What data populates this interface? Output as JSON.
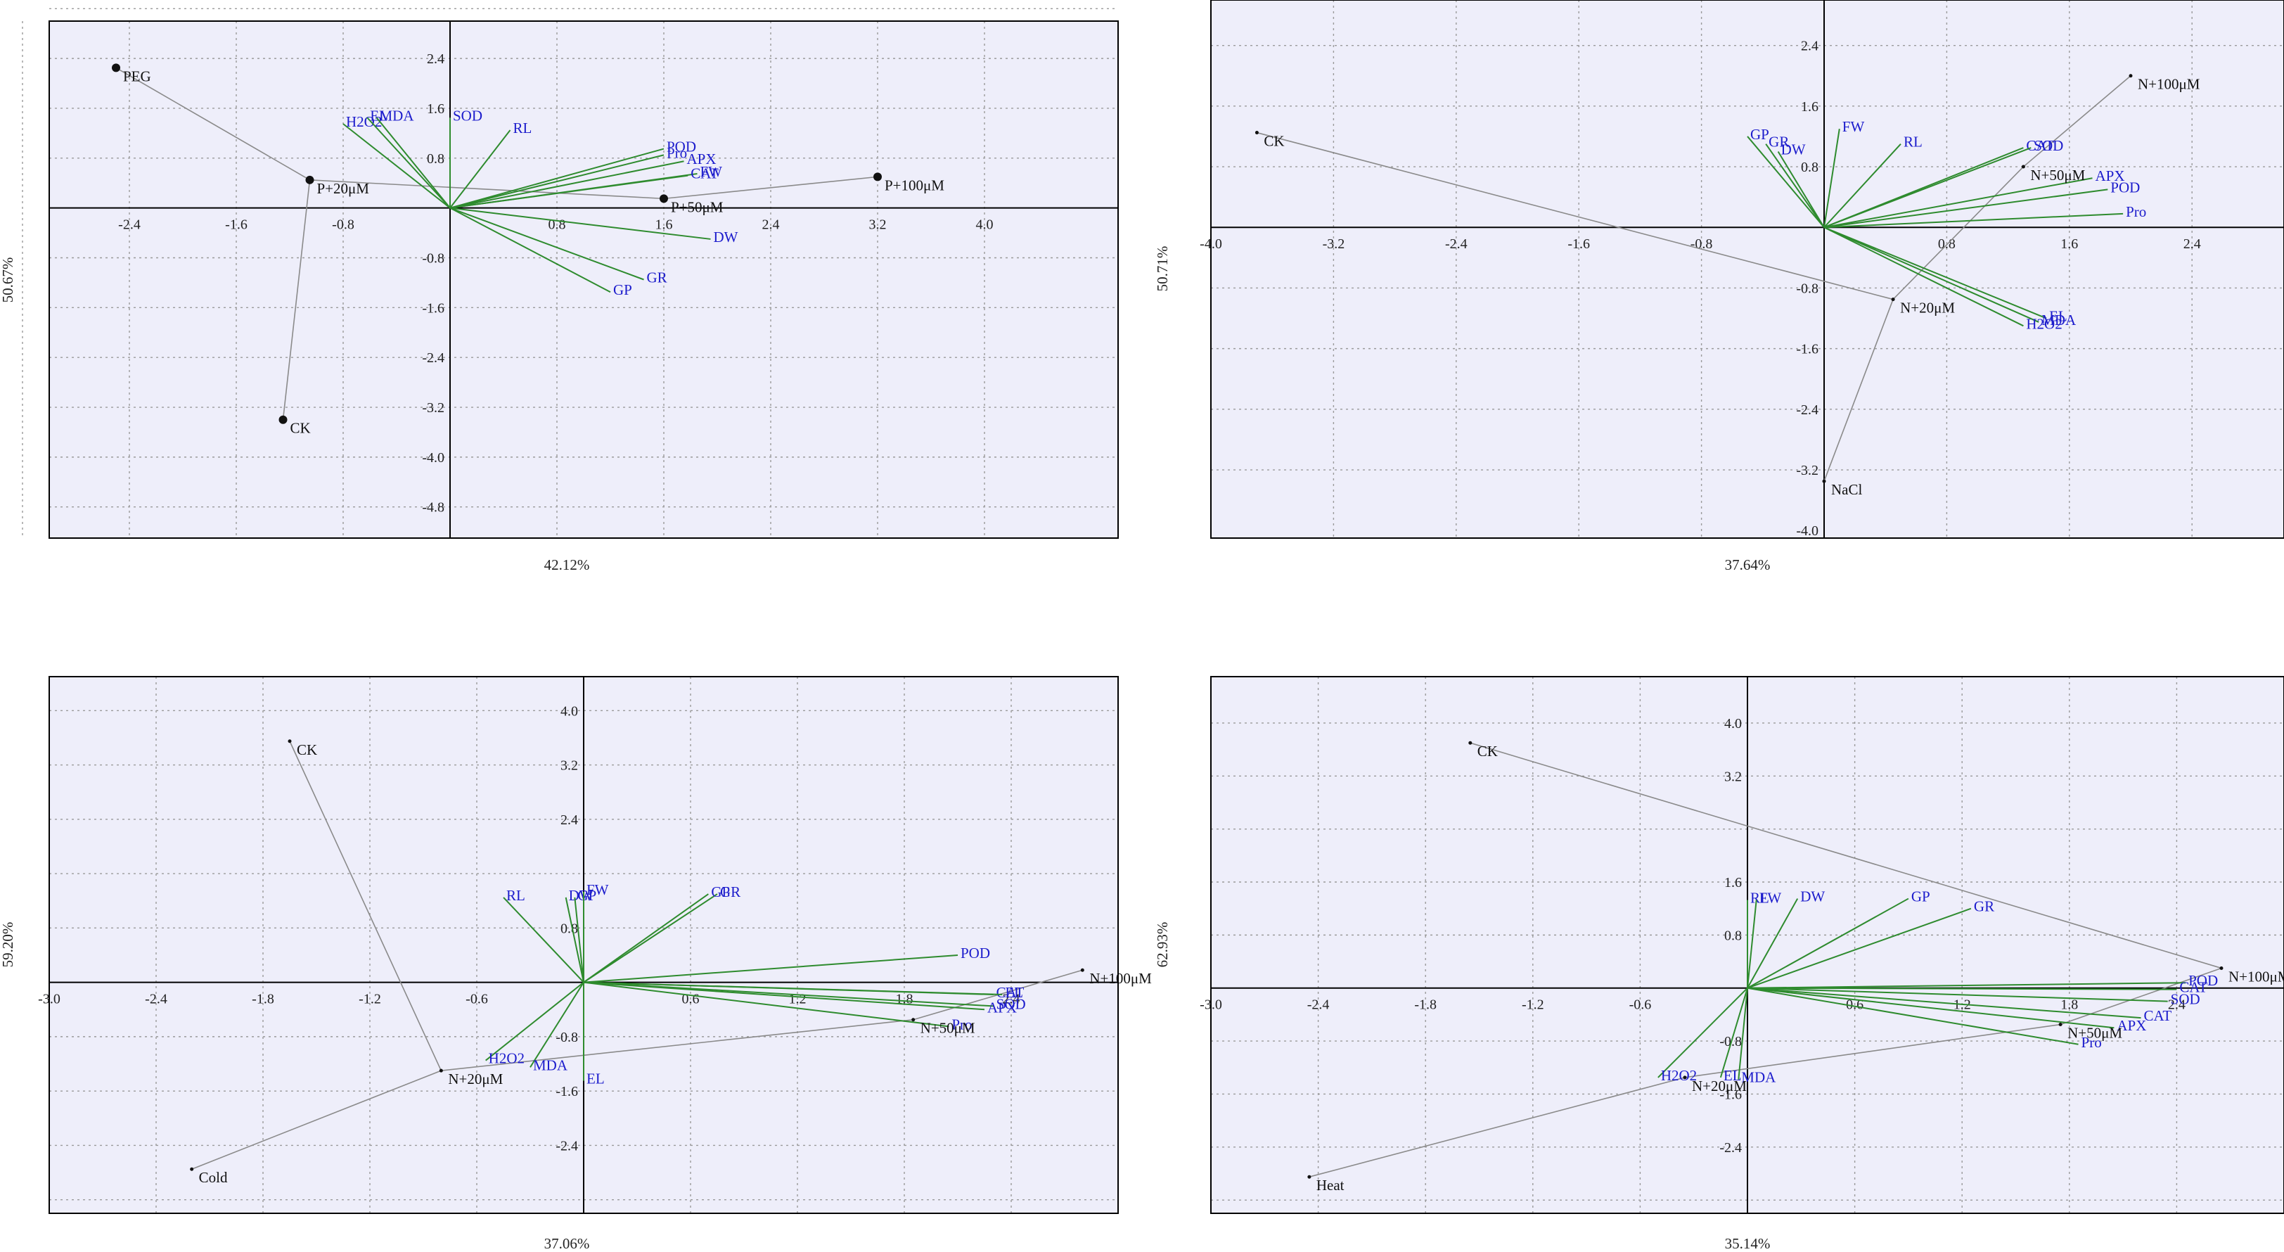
{
  "colors": {
    "plot_bg": "#eeeefa",
    "frame": "#000000",
    "grid": "#9a9a9a",
    "vector": "#2e8b2e",
    "vector_label": "#1c1ccc",
    "sample_line": "#8a8a8a",
    "sample_label": "#111111"
  },
  "chart_data": [
    {
      "type": "scatter",
      "panel": "PEG",
      "xlabel": "42.12%",
      "ylabel": "50.67%",
      "xlim": [
        -3.0,
        5.0
      ],
      "ylim": [
        -5.3,
        3.0
      ],
      "xticks": [
        -2.4,
        -1.6,
        -0.8,
        0.8,
        1.6,
        2.4,
        3.2,
        4.0
      ],
      "xtick_labels": [
        "-2.4",
        "-1.6",
        "-0.8",
        "0.8",
        "1.6",
        "2.4",
        "3.2",
        "4.0"
      ],
      "yticks": [
        2.4,
        1.6,
        0.8,
        -0.8,
        -1.6,
        -2.4,
        -3.2,
        -4.0,
        -4.8
      ],
      "ytick_labels": [
        "2.4",
        "1.6",
        "0.8",
        "-0.8",
        "-1.6",
        "-2.4",
        "-3.2",
        "-4.0",
        "-4.8"
      ],
      "vgrid": [
        -3.2,
        -2.4,
        -1.6,
        -0.8,
        0.8,
        1.6,
        2.4,
        3.2,
        4.0
      ],
      "hgrid": [
        3.2,
        2.4,
        1.6,
        0.8,
        -0.8,
        -1.6,
        -2.4,
        -3.2,
        -4.0,
        -4.8
      ],
      "samples": [
        {
          "label": "PEG",
          "x": -2.5,
          "y": 2.25,
          "dot": true
        },
        {
          "label": "P+20μM",
          "x": -1.05,
          "y": 0.45,
          "dot": true
        },
        {
          "label": "CK",
          "x": -1.25,
          "y": -3.4,
          "dot": true
        },
        {
          "label": "P+50μM",
          "x": 1.6,
          "y": 0.15,
          "dot": true
        },
        {
          "label": "P+100μM",
          "x": 3.2,
          "y": 0.5,
          "dot": true
        }
      ],
      "sample_path": [
        "PEG",
        "P+20μM",
        "CK",
        "P+20μM",
        "P+50μM",
        "P+100μM"
      ],
      "vectors": [
        {
          "label": "H2O2",
          "x": -0.8,
          "y": 1.35
        },
        {
          "label": "EL",
          "x": -0.62,
          "y": 1.45
        },
        {
          "label": "MDA",
          "x": -0.55,
          "y": 1.45
        },
        {
          "label": "SOD",
          "x": 0.0,
          "y": 1.45
        },
        {
          "label": "RL",
          "x": 0.45,
          "y": 1.25
        },
        {
          "label": "POD",
          "x": 1.6,
          "y": 0.95
        },
        {
          "label": "Pro",
          "x": 1.6,
          "y": 0.85
        },
        {
          "label": "APX",
          "x": 1.75,
          "y": 0.75
        },
        {
          "label": "FW",
          "x": 1.85,
          "y": 0.55
        },
        {
          "label": "CAT",
          "x": 1.78,
          "y": 0.52
        },
        {
          "label": "DW",
          "x": 1.95,
          "y": -0.5
        },
        {
          "label": "GR",
          "x": 1.45,
          "y": -1.15
        },
        {
          "label": "GP",
          "x": 1.2,
          "y": -1.35
        }
      ]
    },
    {
      "type": "scatter",
      "panel": "NaCl",
      "xlabel": "37.64%",
      "ylabel": "50.71%",
      "xlim": [
        -4.0,
        3.0
      ],
      "ylim": [
        -4.1,
        3.0
      ],
      "xticks": [
        -4.0,
        -3.2,
        -2.4,
        -1.6,
        -0.8,
        0.8,
        1.6,
        2.4
      ],
      "xtick_labels": [
        "-4.0",
        "-3.2",
        "-2.4",
        "-1.6",
        "-0.8",
        "0.8",
        "1.6",
        "2.4"
      ],
      "yticks": [
        2.4,
        1.6,
        0.8,
        -0.8,
        -1.6,
        -2.4,
        -3.2,
        -4.0
      ],
      "ytick_labels": [
        "2.4",
        "1.6",
        "0.8",
        "-0.8",
        "-1.6",
        "-2.4",
        "-3.2",
        "-4.0"
      ],
      "vgrid": [
        -3.2,
        -2.4,
        -1.6,
        -0.8,
        0.8,
        1.6,
        2.4
      ],
      "hgrid": [
        2.4,
        1.6,
        0.8,
        -0.8,
        -1.6,
        -2.4,
        -3.2
      ],
      "samples": [
        {
          "label": "CK",
          "x": -3.7,
          "y": 1.25,
          "dot": false
        },
        {
          "label": "N+20μM",
          "x": 0.45,
          "y": -0.95,
          "dot": false
        },
        {
          "label": "NaCl",
          "x": 0.0,
          "y": -3.35,
          "dot": false
        },
        {
          "label": "N+50μM",
          "x": 1.3,
          "y": 0.8,
          "dot": false
        },
        {
          "label": "N+100μM",
          "x": 2.0,
          "y": 2.0,
          "dot": false
        }
      ],
      "sample_path": [
        "CK",
        "N+20μM",
        "NaCl",
        "N+20μM",
        "N+50μM",
        "N+100μM"
      ],
      "vectors": [
        {
          "label": "GP",
          "x": -0.5,
          "y": 1.2
        },
        {
          "label": "GR",
          "x": -0.38,
          "y": 1.1
        },
        {
          "label": "DW",
          "x": -0.3,
          "y": 1.0
        },
        {
          "label": "FW",
          "x": 0.1,
          "y": 1.3
        },
        {
          "label": "RL",
          "x": 0.5,
          "y": 1.1
        },
        {
          "label": "CAT",
          "x": 1.3,
          "y": 1.05
        },
        {
          "label": "SOD",
          "x": 1.35,
          "y": 1.05
        },
        {
          "label": "APX",
          "x": 1.75,
          "y": 0.65
        },
        {
          "label": "POD",
          "x": 1.85,
          "y": 0.5
        },
        {
          "label": "Pro",
          "x": 1.95,
          "y": 0.18
        },
        {
          "label": "EL",
          "x": 1.45,
          "y": -1.2
        },
        {
          "label": "MDA",
          "x": 1.4,
          "y": -1.25
        },
        {
          "label": "H2O2",
          "x": 1.3,
          "y": -1.3
        }
      ]
    },
    {
      "type": "scatter",
      "panel": "Cold",
      "xlabel": "37.06%",
      "ylabel": "59.20%",
      "xlim": [
        -3.0,
        3.0
      ],
      "ylim": [
        -3.4,
        4.5
      ],
      "xticks": [
        -3.0,
        -2.4,
        -1.8,
        -1.2,
        -0.6,
        0.6,
        1.2,
        1.8,
        2.4
      ],
      "xtick_labels": [
        "-3.0",
        "-2.4",
        "-1.8",
        "-1.2",
        "-0.6",
        "0.6",
        "1.2",
        "1.8",
        "2.4"
      ],
      "yticks": [
        4.0,
        3.2,
        2.4,
        0.8,
        -0.8,
        -1.6,
        -2.4
      ],
      "ytick_labels": [
        "4.0",
        "3.2",
        "2.4",
        "0.8",
        "-0.8",
        "-1.6",
        "-2.4"
      ],
      "vgrid": [
        -2.4,
        -1.8,
        -1.2,
        -0.6,
        0.6,
        1.2,
        1.8,
        2.4
      ],
      "hgrid": [
        4.0,
        3.2,
        2.4,
        1.6,
        0.8,
        -0.8,
        -1.6,
        -2.4,
        -3.2
      ],
      "samples": [
        {
          "label": "CK",
          "x": -1.65,
          "y": 3.55,
          "dot": false
        },
        {
          "label": "N+20μM",
          "x": -0.8,
          "y": -1.3,
          "dot": false
        },
        {
          "label": "Cold",
          "x": -2.2,
          "y": -2.75,
          "dot": false
        },
        {
          "label": "N+50μM",
          "x": 1.85,
          "y": -0.55,
          "dot": false
        },
        {
          "label": "N+100μM",
          "x": 2.8,
          "y": 0.18,
          "dot": false
        }
      ],
      "sample_path": [
        "CK",
        "N+20μM",
        "Cold",
        "N+20μM",
        "N+50μM",
        "N+100μM"
      ],
      "vectors": [
        {
          "label": "RL",
          "x": -0.45,
          "y": 1.25
        },
        {
          "label": "DW",
          "x": -0.1,
          "y": 1.25
        },
        {
          "label": "GP",
          "x": -0.05,
          "y": 1.25
        },
        {
          "label": "FW",
          "x": 0.0,
          "y": 1.33
        },
        {
          "label": "GR",
          "x": 0.75,
          "y": 1.3
        },
        {
          "label": "GP",
          "x": 0.7,
          "y": 1.3
        },
        {
          "label": "POD",
          "x": 2.1,
          "y": 0.4
        },
        {
          "label": "CAT",
          "x": 2.3,
          "y": -0.18
        },
        {
          "label": "EL",
          "x": 2.35,
          "y": -0.18
        },
        {
          "label": "SOD",
          "x": 2.3,
          "y": -0.35
        },
        {
          "label": "APX",
          "x": 2.25,
          "y": -0.4
        },
        {
          "label": "Pro",
          "x": 2.05,
          "y": -0.65
        },
        {
          "label": "H2O2",
          "x": -0.55,
          "y": -1.15
        },
        {
          "label": "MDA",
          "x": -0.3,
          "y": -1.25
        },
        {
          "label": "EL",
          "x": 0.0,
          "y": -1.45
        }
      ]
    },
    {
      "type": "scatter",
      "panel": "Heat",
      "xlabel": "35.14%",
      "ylabel": "62.93%",
      "xlim": [
        -3.0,
        3.0
      ],
      "ylim": [
        -3.4,
        4.7
      ],
      "xticks": [
        -3.0,
        -2.4,
        -1.8,
        -1.2,
        -0.6,
        0.6,
        1.2,
        1.8,
        2.4
      ],
      "xtick_labels": [
        "-3.0",
        "-2.4",
        "-1.8",
        "-1.2",
        "-0.6",
        "0.6",
        "1.2",
        "1.8",
        "2.4"
      ],
      "yticks": [
        4.0,
        3.2,
        1.6,
        0.8,
        -0.8,
        -1.6,
        -2.4
      ],
      "ytick_labels": [
        "4.0",
        "3.2",
        "1.6",
        "0.8",
        "-0.8",
        "-1.6",
        "-2.4"
      ],
      "vgrid": [
        -2.4,
        -1.8,
        -1.2,
        -0.6,
        0.6,
        1.2,
        1.8,
        2.4
      ],
      "hgrid": [
        4.0,
        3.2,
        2.4,
        1.6,
        0.8,
        -0.8,
        -1.6,
        -2.4,
        -3.2
      ],
      "samples": [
        {
          "label": "CK",
          "x": -1.55,
          "y": 3.7,
          "dot": false
        },
        {
          "label": "N+20μM",
          "x": -0.35,
          "y": -1.35,
          "dot": false
        },
        {
          "label": "Heat",
          "x": -2.45,
          "y": -2.85,
          "dot": false
        },
        {
          "label": "N+50μM",
          "x": 1.75,
          "y": -0.55,
          "dot": false
        },
        {
          "label": "N+100μM",
          "x": 2.65,
          "y": 0.3,
          "dot": false
        }
      ],
      "sample_path": [
        "CK",
        "N+100μM",
        "N+50μM",
        "N+20μM",
        "Heat"
      ],
      "vectors": [
        {
          "label": "RL",
          "x": 0.0,
          "y": 1.33
        },
        {
          "label": "FW",
          "x": 0.05,
          "y": 1.33
        },
        {
          "label": "DW",
          "x": 0.28,
          "y": 1.35
        },
        {
          "label": "GP",
          "x": 0.9,
          "y": 1.35
        },
        {
          "label": "GR",
          "x": 1.25,
          "y": 1.2
        },
        {
          "label": "POD",
          "x": 2.45,
          "y": 0.08
        },
        {
          "label": "CAT",
          "x": 2.4,
          "y": -0.02
        },
        {
          "label": "SOD",
          "x": 2.35,
          "y": -0.2
        },
        {
          "label": "CAT",
          "x": 2.2,
          "y": -0.45
        },
        {
          "label": "APX",
          "x": 2.05,
          "y": -0.6
        },
        {
          "label": "Pro",
          "x": 1.85,
          "y": -0.85
        },
        {
          "label": "H2O2",
          "x": -0.5,
          "y": -1.35
        },
        {
          "label": "EL",
          "x": -0.15,
          "y": -1.35
        },
        {
          "label": "MDA",
          "x": -0.05,
          "y": -1.38
        }
      ]
    }
  ]
}
